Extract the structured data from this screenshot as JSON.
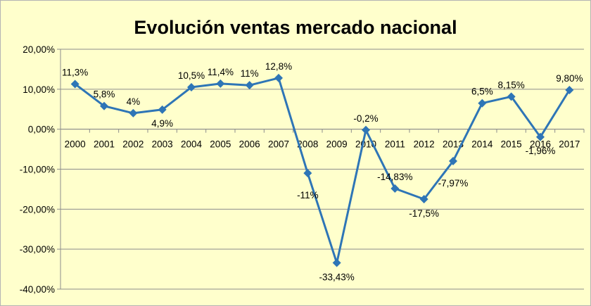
{
  "chart_data": {
    "type": "line",
    "title": "Evolución ventas mercado nacional",
    "xlabel": "",
    "ylabel": "",
    "categories": [
      "2000",
      "2001",
      "2002",
      "2003",
      "2004",
      "2005",
      "2006",
      "2007",
      "2008",
      "2009",
      "2010",
      "2011",
      "2012",
      "2013",
      "2014",
      "2015",
      "2016",
      "2017"
    ],
    "series": [
      {
        "values": [
          11.3,
          5.8,
          4,
          4.9,
          10.5,
          11.4,
          11,
          12.8,
          -11,
          -33.43,
          -0.2,
          -14.83,
          -17.5,
          -7.97,
          6.5,
          8.15,
          -1.96,
          9.8
        ],
        "labels": [
          "11,3%",
          "5,8%",
          "4%",
          "4,9%",
          "10,5%",
          "11,4%",
          "11%",
          "12,8%",
          "-11%",
          "-33,43%",
          "-0,2%",
          "-14,83%",
          "-17,5%",
          "-7,97%",
          "6,5%",
          "8,15%",
          "-1,96%",
          "9,80%"
        ]
      }
    ],
    "ylim": [
      -40,
      20
    ],
    "yticks": [
      20,
      10,
      0,
      -10,
      -20,
      -30,
      -40
    ],
    "ytick_labels": [
      "20,00%",
      "10,00%",
      "0,00%",
      "-10,00%",
      "-20,00%",
      "-30,00%",
      "-40,00%"
    ],
    "grid": true,
    "legend": "none",
    "colors": {
      "line": "#2e75b6",
      "marker": "#2e75b6",
      "grid": "#8c8c8c",
      "background": "#ffffcc"
    }
  }
}
